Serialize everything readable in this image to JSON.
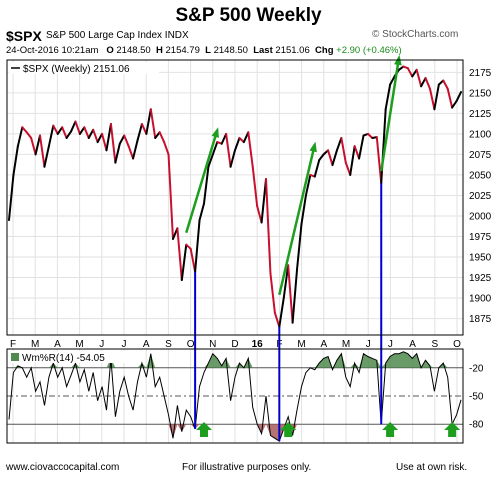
{
  "header": {
    "title": "S&P 500 Weekly",
    "symbol": "$SPX",
    "name": "S&P 500 Large Cap Index  INDX",
    "brand": "© StockCharts.com",
    "date": "24-Oct-2016 10:21am",
    "open_label": "O",
    "open": "2148.50",
    "high_label": "H",
    "high": "2154.79",
    "low_label": "L",
    "low": "2148.50",
    "last_label": "Last",
    "last": "2151.06",
    "chg_label": "Chg",
    "chg": "+2.90 (+0.46%)"
  },
  "legend": {
    "price": "$SPX (Weekly) 2151.06",
    "wpr": "Wm%R(14) -54.05"
  },
  "footer": {
    "left": "www.ciovaccocapital.com",
    "center": "For illustrative purposes only.",
    "right": "Use at own risk."
  },
  "colors": {
    "up": "#000000",
    "down": "#c8102e",
    "arrow": "#1e9e1e",
    "vline": "#0000cc",
    "fill": "#4f8a4f"
  },
  "chart_data": [
    {
      "type": "line",
      "series": [
        {
          "name": "$SPX (Weekly)",
          "values": [
            1995,
            2050,
            2085,
            2108,
            2102,
            2095,
            2075,
            2098,
            2060,
            2085,
            2110,
            2100,
            2108,
            2095,
            2103,
            2115,
            2100,
            2108,
            2095,
            2105,
            2090,
            2100,
            2080,
            2112,
            2065,
            2088,
            2098,
            2085,
            2070,
            2092,
            2112,
            2100,
            2130,
            2095,
            2102,
            2090,
            2075,
            1972,
            1985,
            1922,
            1965,
            1960,
            1932,
            1995,
            2015,
            2060,
            2075,
            2090,
            2088,
            2100,
            2060,
            2080,
            2095,
            2090,
            2102,
            2060,
            2012,
            1992,
            2045,
            1930,
            1882,
            1865,
            1900,
            1940,
            1870,
            1935,
            1990,
            2025,
            2050,
            2048,
            2068,
            2075,
            2080,
            2062,
            2080,
            2095,
            2065,
            2050,
            2085,
            2070,
            2098,
            2100,
            2095,
            2096,
            2040,
            2130,
            2160,
            2170,
            2178,
            2182,
            2180,
            2170,
            2178,
            2158,
            2168,
            2155,
            2130,
            2160,
            2165,
            2155,
            2132,
            2140,
            2151
          ]
        }
      ],
      "ylim": [
        1855,
        2190
      ],
      "y_ticks": [
        1875,
        1900,
        1925,
        1950,
        1975,
        2000,
        2025,
        2050,
        2075,
        2100,
        2125,
        2150,
        2175
      ],
      "x_ticks": [
        "F",
        "M",
        "A",
        "M",
        "J",
        "J",
        "A",
        "S",
        "O",
        "N",
        "D",
        "16",
        "F",
        "M",
        "A",
        "M",
        "J",
        "J",
        "A",
        "S",
        "O"
      ],
      "grid": true
    },
    {
      "type": "line",
      "series": [
        {
          "name": "Wm%R(14)",
          "values": [
            -75,
            -25,
            -18,
            -20,
            -30,
            -20,
            -45,
            -35,
            -60,
            -30,
            -15,
            -30,
            -20,
            -40,
            -28,
            -15,
            -35,
            -22,
            -45,
            -25,
            -55,
            -40,
            -65,
            -10,
            -72,
            -45,
            -30,
            -50,
            -65,
            -35,
            -15,
            -30,
            -5,
            -40,
            -30,
            -50,
            -70,
            -95,
            -60,
            -88,
            -65,
            -72,
            -85,
            -40,
            -25,
            -15,
            -5,
            -10,
            -18,
            -10,
            -55,
            -30,
            -15,
            -20,
            -10,
            -62,
            -80,
            -90,
            -50,
            -92,
            -95,
            -98,
            -85,
            -72,
            -92,
            -65,
            -40,
            -25,
            -20,
            -22,
            -15,
            -10,
            -8,
            -22,
            -12,
            -5,
            -30,
            -40,
            -15,
            -25,
            -5,
            -8,
            -10,
            -12,
            -80,
            -15,
            -8,
            -5,
            -5,
            -3,
            -5,
            -10,
            -5,
            -20,
            -12,
            -18,
            -45,
            -20,
            -15,
            -30,
            -80,
            -70,
            -54
          ]
        }
      ],
      "ylim": [
        -100,
        0
      ],
      "y_ticks": [
        -20,
        -50,
        -80
      ],
      "reference_lines": [
        -20,
        -50,
        -80
      ]
    }
  ]
}
